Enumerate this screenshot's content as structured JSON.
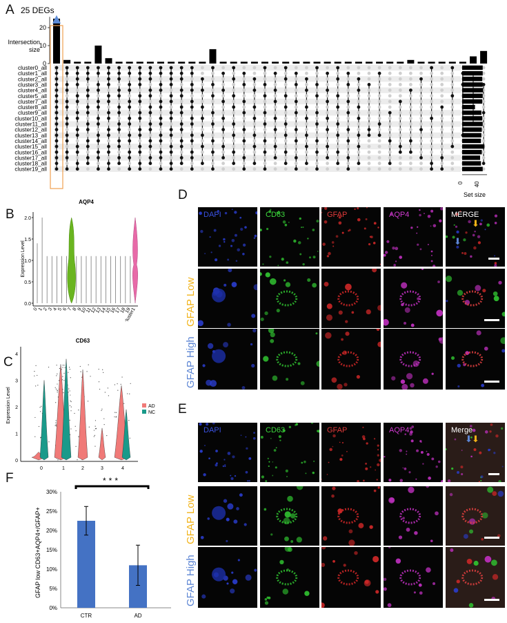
{
  "panel_labels": {
    "A": "A",
    "B": "B",
    "C": "C",
    "D": "D",
    "E": "E",
    "F": "F"
  },
  "upset": {
    "annotation": "25 DEGs",
    "ylabel_line1": "Intersection",
    "ylabel_line2": "size",
    "yticks": [
      "0",
      "10",
      "20"
    ],
    "set_size_label": "Set size",
    "set_size_ticks": [
      "0",
      "40"
    ],
    "sets": [
      "cluster0_all",
      "cluster1_all",
      "cluster2_all",
      "cluster3_all",
      "cluster4_all",
      "cluster5_all",
      "cluster7_all",
      "cluster8_all",
      "cluster9_all",
      "cluster10_all",
      "cluster11_all",
      "cluster12_all",
      "cluster13_all",
      "cluster14_all",
      "cluster15_all",
      "cluster16_all",
      "cluster17_all",
      "cluster18_all",
      "cluster19_all"
    ],
    "set_sizes": [
      48,
      48,
      47,
      48,
      49,
      48,
      47,
      30,
      45,
      47,
      48,
      46,
      45,
      44,
      52,
      46,
      42,
      44,
      48
    ],
    "intersection_sizes": [
      25,
      2,
      1,
      1,
      10,
      3,
      1,
      1,
      1,
      1,
      1,
      1,
      1,
      1,
      1,
      8,
      1,
      1,
      1,
      1,
      1,
      1,
      1,
      1,
      1,
      1,
      1,
      1,
      1,
      1,
      1,
      1,
      1,
      1,
      2,
      1,
      1,
      1,
      1,
      1,
      4,
      7
    ]
  },
  "violin_aqp4": {
    "title": "AQP4",
    "ylabel": "Expression Level",
    "yticks": [
      "0.0",
      "0.5",
      "1.0",
      "1.5",
      "2.0"
    ],
    "xticks": [
      "0",
      "1",
      "2",
      "3",
      "4",
      "5",
      "6",
      "7",
      "8",
      "9",
      "10",
      "11",
      "12",
      "13",
      "14",
      "15",
      "16",
      "17",
      "18",
      "19",
      "Ast_cluster1"
    ]
  },
  "violin_cd63": {
    "title": "CD63",
    "ylabel": "Expression Level",
    "yticks": [
      "0",
      "1",
      "2",
      "3",
      "4"
    ],
    "xticks": [
      "0",
      "1",
      "2",
      "3",
      "4"
    ],
    "legend": [
      {
        "name": "AD",
        "color": "#f07a78"
      },
      {
        "name": "NC",
        "color": "#1a9a8a"
      }
    ]
  },
  "panel_d": {
    "columns": [
      "DAPI",
      "CD63",
      "GFAP",
      "AQP4",
      "MERGE"
    ],
    "column_colors": [
      "#3a52e0",
      "#3dd83d",
      "#e03a3a",
      "#d03ad0",
      "#ffffff"
    ],
    "row_labels": [
      {
        "word": "GFAP",
        "level": "Low",
        "color": "#f2b318"
      },
      {
        "word": "GFAP",
        "level": "High",
        "color": "#5d86d4"
      }
    ]
  },
  "panel_e": {
    "columns": [
      "DAPI",
      "CD63",
      "GFAP",
      "AQP4",
      "Merge"
    ],
    "column_colors": [
      "#3a52e0",
      "#3dd83d",
      "#e03a3a",
      "#d03ad0",
      "#ffffff"
    ],
    "row_labels": [
      {
        "word": "GFAP",
        "level": "Low",
        "color": "#f2b318"
      },
      {
        "word": "GFAP",
        "level": "High",
        "color": "#5d86d4"
      }
    ]
  },
  "chart_data": {
    "type": "bar",
    "categories": [
      "CTR",
      "AD"
    ],
    "values": [
      22.5,
      11.0
    ],
    "errors": [
      3.7,
      5.2
    ],
    "ylabel": "GFAP low CD63+AQP4+/GFAP+",
    "ylim": [
      0,
      30
    ],
    "yticks": [
      "0%",
      "5%",
      "10%",
      "15%",
      "20%",
      "25%",
      "30%"
    ],
    "significance": "***",
    "bar_color": "#4472c4"
  }
}
